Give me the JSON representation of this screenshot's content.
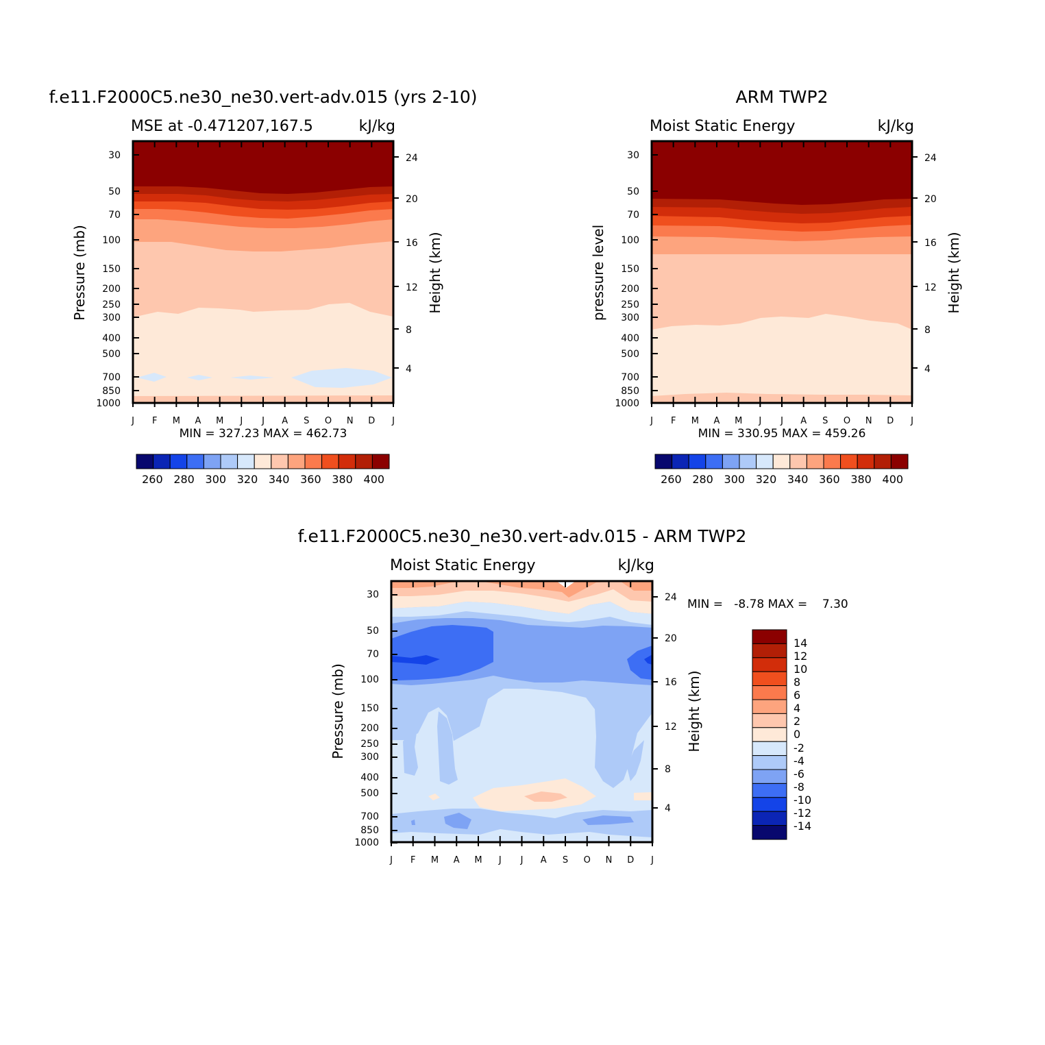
{
  "chart_data": [
    {
      "type": "heatmap",
      "title": "f.e11.F2000C5.ne30_ne30.vert-adv.015 (yrs 2-10)",
      "subtitle_left": "MSE at -0.471207,167.5",
      "units": "kJ/kg",
      "ylabel": "Pressure (mb)",
      "ylabel_right": "Height (km)",
      "x_ticks": [
        "J",
        "F",
        "M",
        "A",
        "M",
        "J",
        "J",
        "A",
        "S",
        "O",
        "N",
        "D",
        "J"
      ],
      "y_ticks": [
        "30",
        "50",
        "70",
        "100",
        "150",
        "200",
        "250",
        "300",
        "400",
        "500",
        "700",
        "850",
        "1000"
      ],
      "y_right_ticks": [
        "24",
        "20",
        "16",
        "12",
        "8",
        "4"
      ],
      "stats": "MIN = 327.23 MAX = 462.73",
      "colorbar_labels": [
        "260",
        "280",
        "300",
        "320",
        "340",
        "360",
        "380",
        "400"
      ],
      "ylim": [
        1000,
        20
      ],
      "y_scale": "log"
    },
    {
      "type": "heatmap",
      "title": "ARM TWP2",
      "subtitle_left": "Moist Static Energy",
      "units": "kJ/kg",
      "ylabel": "pressure level",
      "ylabel_right": "Height (km)",
      "x_ticks": [
        "J",
        "F",
        "M",
        "A",
        "M",
        "J",
        "J",
        "A",
        "S",
        "O",
        "N",
        "D",
        "J"
      ],
      "y_ticks": [
        "30",
        "50",
        "70",
        "100",
        "150",
        "200",
        "250",
        "300",
        "400",
        "500",
        "700",
        "850",
        "1000"
      ],
      "y_right_ticks": [
        "24",
        "20",
        "16",
        "12",
        "8",
        "4"
      ],
      "stats": "MIN = 330.95 MAX = 459.26",
      "colorbar_labels": [
        "260",
        "280",
        "300",
        "320",
        "340",
        "360",
        "380",
        "400"
      ],
      "ylim": [
        1000,
        20
      ],
      "y_scale": "log"
    },
    {
      "type": "heatmap",
      "title": "f.e11.F2000C5.ne30_ne30.vert-adv.015 - ARM TWP2",
      "subtitle_left": "Moist Static Energy",
      "units": "kJ/kg",
      "ylabel": "Pressure (mb)",
      "ylabel_right": "Height (km)",
      "x_ticks": [
        "J",
        "F",
        "M",
        "A",
        "M",
        "J",
        "J",
        "A",
        "S",
        "O",
        "N",
        "D",
        "J"
      ],
      "y_ticks": [
        "30",
        "50",
        "70",
        "100",
        "150",
        "200",
        "250",
        "300",
        "400",
        "500",
        "700",
        "850",
        "1000"
      ],
      "y_right_ticks": [
        "24",
        "20",
        "16",
        "12",
        "8",
        "4"
      ],
      "stats": "MIN =   -8.78 MAX =    7.30",
      "colorbar_labels": [
        "14",
        "12",
        "10",
        "8",
        "6",
        "4",
        "2",
        "0",
        "-2",
        "-4",
        "-6",
        "-8",
        "-10",
        "-12",
        "-14"
      ],
      "ylim": [
        1000,
        20
      ],
      "y_scale": "log"
    }
  ],
  "colors": {
    "abs_scale": [
      "#08086e",
      "#0b25b5",
      "#1444e8",
      "#3d6ef4",
      "#7ea3f4",
      "#aecaf8",
      "#d7e8fb",
      "#fee9d8",
      "#fec7ae",
      "#fda47e",
      "#fb7a4d",
      "#f04f1e",
      "#d22d0a",
      "#b21f06",
      "#8b0000"
    ],
    "diff_scale": [
      "#8b0000",
      "#b21f06",
      "#d22d0a",
      "#f04f1e",
      "#fb7a4d",
      "#fda47e",
      "#fec7ae",
      "#fee9d8",
      "#d7e8fb",
      "#aecaf8",
      "#7ea3f4",
      "#3d6ef4",
      "#1444e8",
      "#0b25b5",
      "#08086e"
    ]
  }
}
